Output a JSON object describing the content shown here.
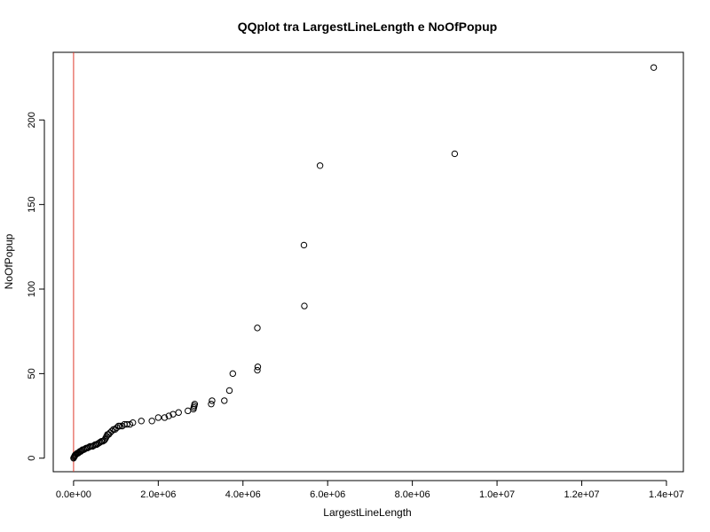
{
  "chart_data": {
    "type": "scatter",
    "title": "QQplot tra LargestLineLength e NoOfPopup",
    "xlabel": "LargestLineLength",
    "ylabel": "NoOfPopup",
    "xlim": [
      -480000,
      14400000
    ],
    "ylim": [
      -8,
      240
    ],
    "x_ticks": [
      {
        "value": 0,
        "label": "0.0e+00"
      },
      {
        "value": 2000000,
        "label": "2.0e+06"
      },
      {
        "value": 4000000,
        "label": "4.0e+06"
      },
      {
        "value": 6000000,
        "label": "6.0e+06"
      },
      {
        "value": 8000000,
        "label": "8.0e+06"
      },
      {
        "value": 10000000,
        "label": "1.0e+07"
      },
      {
        "value": 12000000,
        "label": "1.2e+07"
      },
      {
        "value": 14000000,
        "label": "1.4e+07"
      }
    ],
    "y_ticks": [
      {
        "value": 0,
        "label": "0"
      },
      {
        "value": 50,
        "label": "50"
      },
      {
        "value": 100,
        "label": "100"
      },
      {
        "value": 150,
        "label": "150"
      },
      {
        "value": 200,
        "label": "200"
      }
    ],
    "grid": false,
    "point_color": "#000000",
    "reference_line": {
      "type": "vertical",
      "x": 0,
      "color": "#e0392b"
    },
    "points": [
      [
        0,
        0
      ],
      [
        10000,
        0.5
      ],
      [
        20000,
        1
      ],
      [
        30000,
        1.5
      ],
      [
        40000,
        2
      ],
      [
        50000,
        2
      ],
      [
        70000,
        2.5
      ],
      [
        90000,
        3
      ],
      [
        110000,
        3
      ],
      [
        130000,
        3.5
      ],
      [
        150000,
        4
      ],
      [
        170000,
        4
      ],
      [
        190000,
        4.5
      ],
      [
        210000,
        5
      ],
      [
        240000,
        5
      ],
      [
        270000,
        5.5
      ],
      [
        300000,
        6
      ],
      [
        330000,
        6
      ],
      [
        360000,
        6.5
      ],
      [
        390000,
        7
      ],
      [
        420000,
        7
      ],
      [
        450000,
        7
      ],
      [
        480000,
        7.5
      ],
      [
        510000,
        8
      ],
      [
        540000,
        8
      ],
      [
        570000,
        8.5
      ],
      [
        600000,
        9
      ],
      [
        630000,
        9.5
      ],
      [
        660000,
        10
      ],
      [
        690000,
        10
      ],
      [
        720000,
        10.5
      ],
      [
        740000,
        11
      ],
      [
        760000,
        12
      ],
      [
        780000,
        13
      ],
      [
        800000,
        14
      ],
      [
        830000,
        14
      ],
      [
        860000,
        15
      ],
      [
        900000,
        16
      ],
      [
        940000,
        17
      ],
      [
        980000,
        17
      ],
      [
        1020000,
        18
      ],
      [
        1060000,
        19
      ],
      [
        1100000,
        19
      ],
      [
        1150000,
        19
      ],
      [
        1200000,
        20
      ],
      [
        1260000,
        20
      ],
      [
        1330000,
        20
      ],
      [
        1400000,
        21
      ],
      [
        1600000,
        22
      ],
      [
        1850000,
        22
      ],
      [
        2000000,
        24
      ],
      [
        2150000,
        24
      ],
      [
        2250000,
        25
      ],
      [
        2350000,
        26
      ],
      [
        2480000,
        27
      ],
      [
        2700000,
        28
      ],
      [
        2830000,
        29
      ],
      [
        2840000,
        30
      ],
      [
        2850000,
        31
      ],
      [
        2860000,
        32
      ],
      [
        3250000,
        32
      ],
      [
        3270000,
        34
      ],
      [
        3560000,
        34
      ],
      [
        3680000,
        40
      ],
      [
        3760000,
        50
      ],
      [
        4340000,
        52
      ],
      [
        4350000,
        54
      ],
      [
        4340000,
        77
      ],
      [
        5450000,
        90
      ],
      [
        5440000,
        126
      ],
      [
        5820000,
        173
      ],
      [
        9000000,
        180
      ],
      [
        13700000,
        231
      ]
    ]
  }
}
